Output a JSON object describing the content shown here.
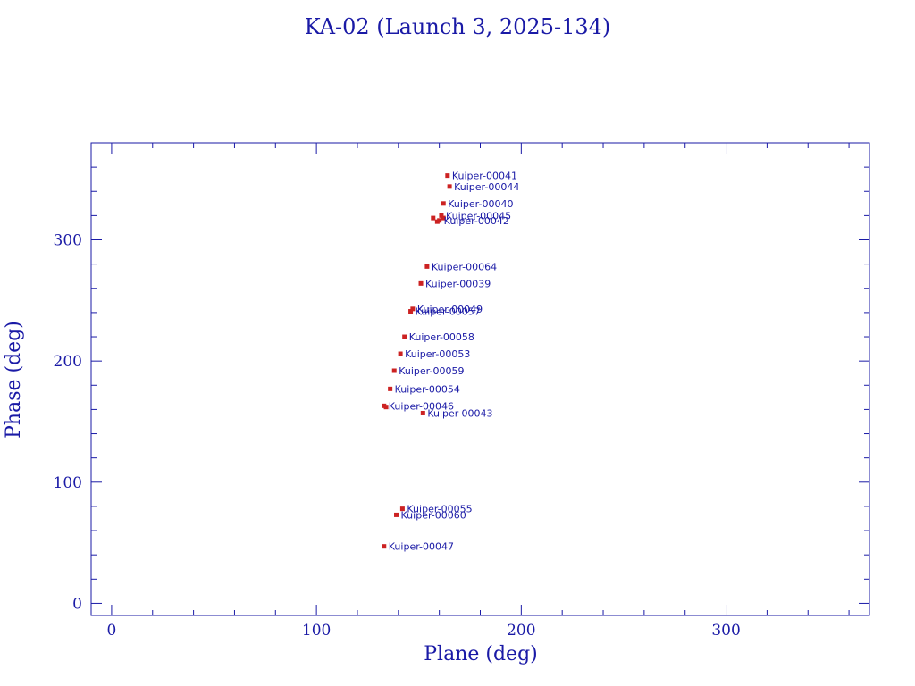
{
  "chart_data": {
    "type": "scatter",
    "title": "KA-02 (Launch 3, 2025-134)",
    "xlabel": "Plane (deg)",
    "ylabel": "Phase (deg)",
    "xlim": [
      -10,
      370
    ],
    "ylim": [
      -10,
      380
    ],
    "x_major_ticks": [
      0,
      100,
      200,
      300
    ],
    "y_major_ticks": [
      0,
      100,
      200,
      300
    ],
    "x_tick_labels": [
      "0",
      "100",
      "200",
      "300"
    ],
    "y_tick_labels": [
      "0",
      "100",
      "200",
      "300"
    ],
    "x_minor_step": 20,
    "y_minor_step": 20,
    "grid": false,
    "legend": "none",
    "colors": {
      "axes": "#1a1aa6",
      "marker": "#cc2222",
      "label": "#1a1aa6"
    },
    "points": [
      {
        "label": "Kuiper-00041",
        "x": 164,
        "y": 353
      },
      {
        "label": "Kuiper-00044",
        "x": 165,
        "y": 344
      },
      {
        "label": "Kuiper-00040",
        "x": 162,
        "y": 330
      },
      {
        "label": "Kuiper-00045",
        "x": 161,
        "y": 320
      },
      {
        "label": "Kuiper-00042",
        "x": 160,
        "y": 316
      },
      {
        "label": "Kuiper-00064",
        "x": 154,
        "y": 278
      },
      {
        "label": "Kuiper-00039",
        "x": 151,
        "y": 264
      },
      {
        "label": "Kuiper-00049",
        "x": 147,
        "y": 243
      },
      {
        "label": "Kuiper-00057",
        "x": 146,
        "y": 241
      },
      {
        "label": "Kuiper-00058",
        "x": 143,
        "y": 220
      },
      {
        "label": "Kuiper-00053",
        "x": 141,
        "y": 206
      },
      {
        "label": "Kuiper-00059",
        "x": 138,
        "y": 192
      },
      {
        "label": "Kuiper-00054",
        "x": 136,
        "y": 177
      },
      {
        "label": "Kuiper-00046",
        "x": 133,
        "y": 163
      },
      {
        "label": "Kuiper-00043",
        "x": 152,
        "y": 157
      },
      {
        "label": "Kuiper-00055",
        "x": 142,
        "y": 78
      },
      {
        "label": "Kuiper-00060",
        "x": 139,
        "y": 73
      },
      {
        "label": "Kuiper-00047",
        "x": 133,
        "y": 47
      }
    ],
    "unlabeled_points": [
      {
        "x": 157,
        "y": 318
      },
      {
        "x": 162,
        "y": 318
      },
      {
        "x": 159,
        "y": 315
      },
      {
        "x": 134,
        "y": 162
      }
    ]
  }
}
